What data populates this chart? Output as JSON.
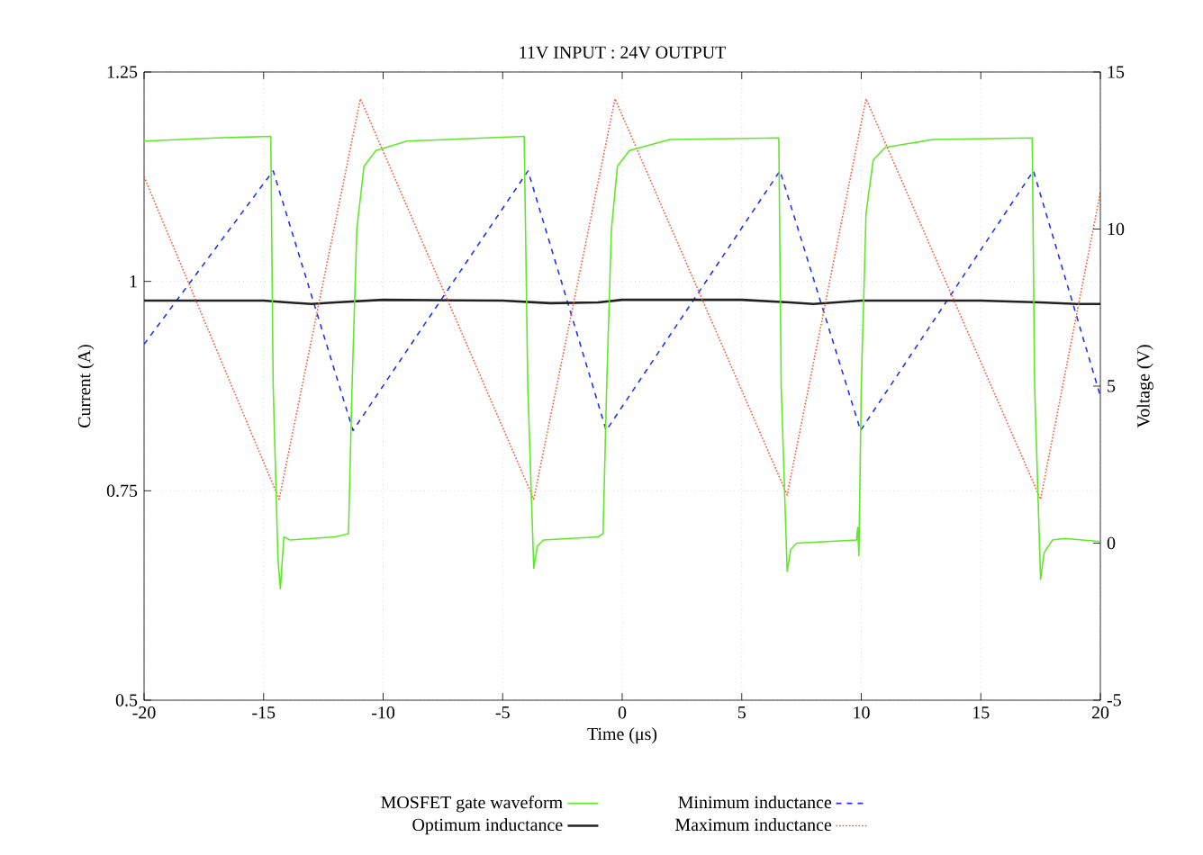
{
  "chart_data": {
    "type": "line",
    "title": "11V INPUT : 24V OUTPUT",
    "xlabel": "Time (μs)",
    "ylabel": "Current (A)",
    "y2label": "Voltage (V)",
    "xlim": [
      -20,
      20
    ],
    "xticks": [
      -20,
      -15,
      -10,
      -5,
      0,
      5,
      10,
      15,
      20
    ],
    "ylim": [
      0.5,
      1.25
    ],
    "yticks": [
      0.5,
      0.75,
      1,
      1.25
    ],
    "y2lim": [
      -5,
      15
    ],
    "y2ticks": [
      -5,
      0,
      5,
      10,
      15
    ],
    "grid": true,
    "legend": "bottom",
    "series": [
      {
        "name": "MOSFET gate waveform",
        "color": "#5fe82a",
        "axis": "y2",
        "line_style": "solid",
        "x": [
          -20,
          -17,
          -14.7,
          -14.6,
          -14.4,
          -14.3,
          -14.15,
          -13.9,
          -12,
          -11.45,
          -11.3,
          -11.1,
          -10.8,
          -10.3,
          -9,
          -4.1,
          -3.95,
          -3.7,
          -3.55,
          -3.3,
          -1,
          -0.8,
          -0.65,
          -0.45,
          -0.2,
          0.3,
          2,
          6.55,
          6.65,
          6.9,
          7.05,
          7.3,
          9.8,
          9.85,
          9.9,
          10.0,
          10.2,
          10.5,
          11,
          13,
          17.15,
          17.25,
          17.5,
          17.65,
          18,
          18.5,
          20
        ],
        "values": [
          12.8,
          12.9,
          12.95,
          5,
          -0.5,
          -1.45,
          0.2,
          0.1,
          0.2,
          0.3,
          5,
          10,
          12.0,
          12.5,
          12.8,
          12.95,
          5,
          -0.8,
          -0.1,
          0.1,
          0.2,
          0.3,
          5,
          10,
          12.0,
          12.5,
          12.85,
          12.9,
          5,
          -0.9,
          -0.2,
          0.0,
          0.1,
          0.5,
          -0.4,
          5,
          10.5,
          12.2,
          12.6,
          12.85,
          12.9,
          5,
          -1.15,
          -0.3,
          0.1,
          0.15,
          0.05
        ]
      },
      {
        "name": "Minimum inductance",
        "color": "#2233ee",
        "line_style": "dashed",
        "x": [
          -20,
          -14.6,
          -11.26,
          -3.94,
          -0.67,
          6.6,
          9.97,
          17.2,
          20
        ],
        "values": [
          0.925,
          1.132,
          0.822,
          1.132,
          0.822,
          1.132,
          0.822,
          1.132,
          0.863
        ]
      },
      {
        "name": "Optimum inductance",
        "color": "#222222",
        "line_style": "solid",
        "x": [
          -20,
          -15,
          -14,
          -13,
          -12,
          -10,
          -5,
          -3,
          -1,
          0,
          5,
          7,
          8,
          10,
          15,
          17.5,
          19,
          20
        ],
        "values": [
          0.977,
          0.977,
          0.975,
          0.973,
          0.975,
          0.978,
          0.977,
          0.974,
          0.975,
          0.978,
          0.978,
          0.975,
          0.973,
          0.977,
          0.977,
          0.975,
          0.973,
          0.973
        ]
      },
      {
        "name": "Maximum inductance",
        "color": "#ff5533",
        "line_style": "dotted",
        "x": [
          -20,
          -14.35,
          -10.95,
          -3.7,
          -0.3,
          6.9,
          10.2,
          17.5,
          20
        ],
        "values": [
          1.125,
          0.74,
          1.218,
          0.74,
          1.218,
          0.745,
          1.218,
          0.74,
          1.106
        ]
      }
    ]
  }
}
